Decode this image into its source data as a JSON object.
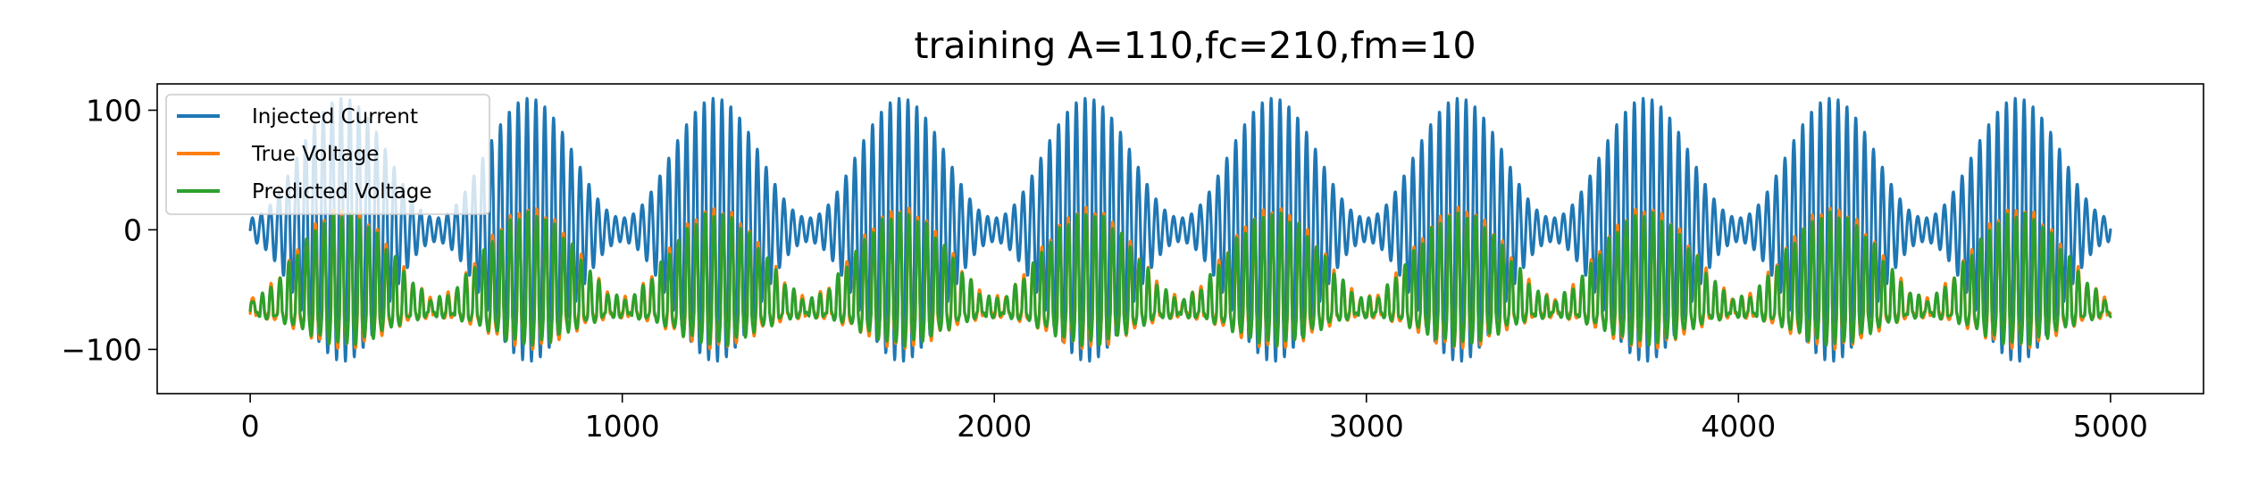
{
  "chart_data": {
    "type": "line",
    "title": "training A=110,fc=210,fm=10",
    "xlabel": "",
    "ylabel": "",
    "xlim": [
      -250,
      5250
    ],
    "ylim": [
      -137,
      122
    ],
    "xticks": [
      0,
      1000,
      2000,
      3000,
      4000,
      5000
    ],
    "xtick_labels": [
      "0",
      "1000",
      "2000",
      "3000",
      "4000",
      "5000"
    ],
    "yticks": [
      -100,
      0,
      100
    ],
    "ytick_labels": [
      "−100",
      "0",
      "100"
    ],
    "grid": false,
    "legend_position": "top-left",
    "n_points": 5001,
    "x_range": [
      0,
      5000
    ],
    "series": [
      {
        "name": "Injected Current",
        "color": "#1f77b4",
        "model": "am_sinusoid",
        "amplitude": 110,
        "carrier_cycles_per_window": 210,
        "modulation_cycles_per_window": 10,
        "envelope_min": 0.09
      },
      {
        "name": "True Voltage",
        "color": "#ff7f0e",
        "model": "nonlinear_response",
        "rest_level": -70,
        "max": 45,
        "min": -125
      },
      {
        "name": "Predicted Voltage",
        "color": "#2ca02c",
        "model": "nonlinear_response",
        "rest_level": -70,
        "max": 40,
        "min": -120
      }
    ]
  }
}
